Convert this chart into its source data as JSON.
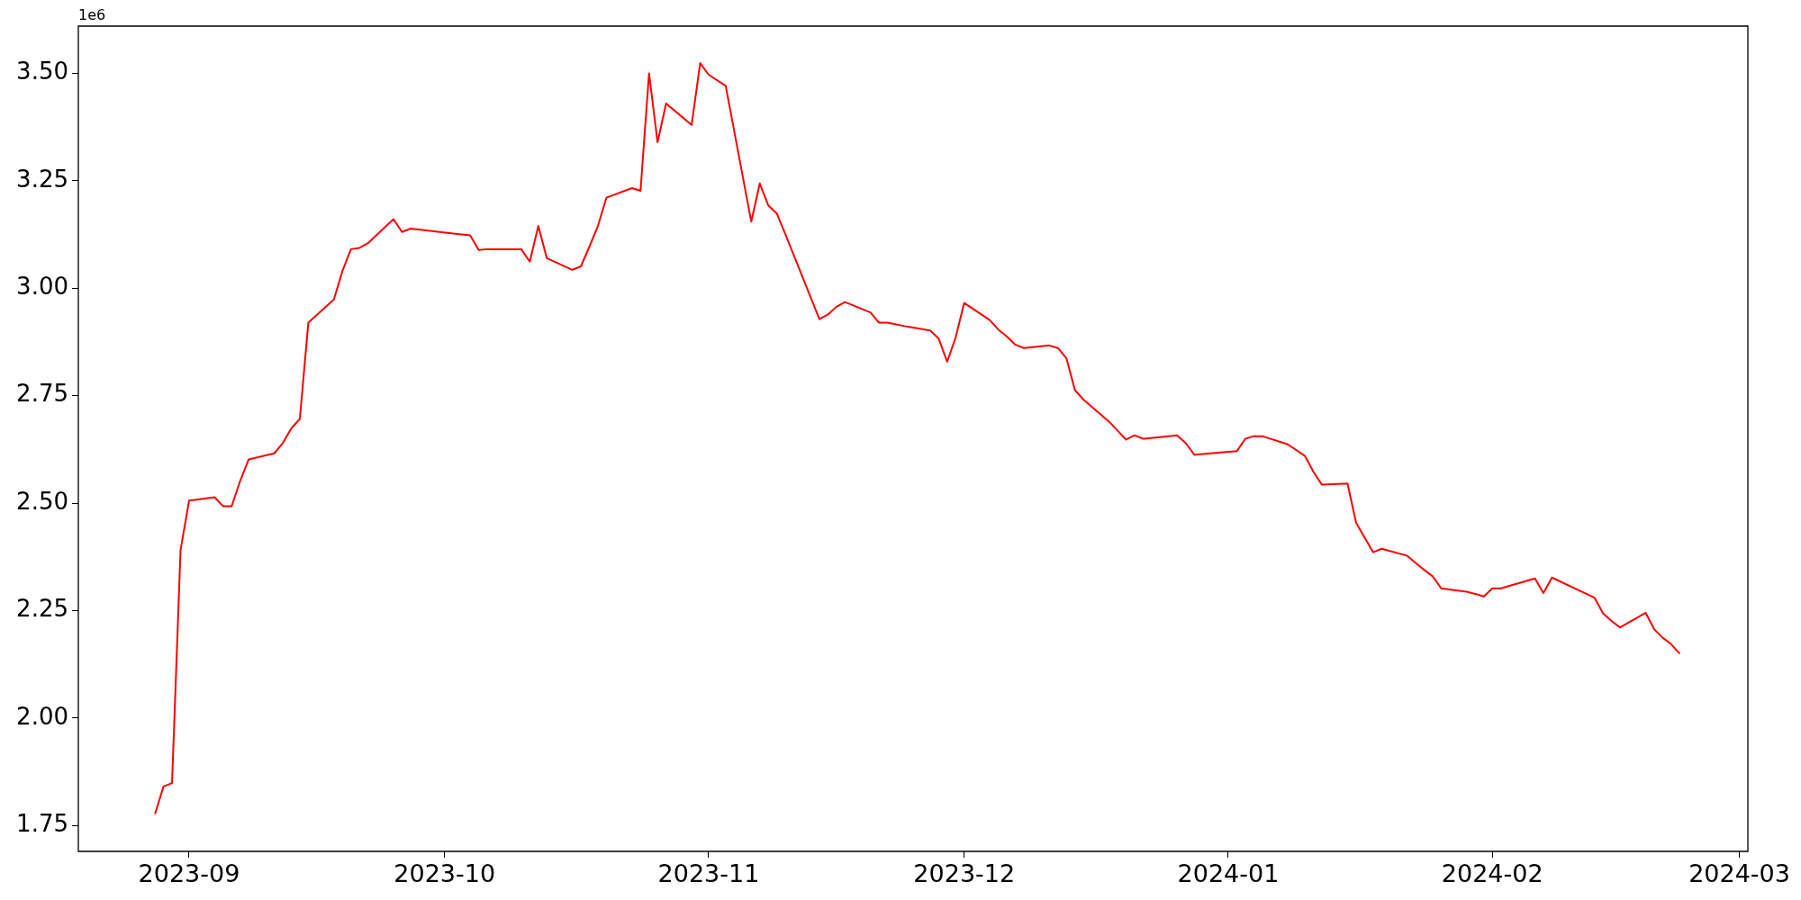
{
  "chart_data": {
    "type": "line",
    "x": [
      "2023-08-28",
      "2023-08-29",
      "2023-08-30",
      "2023-08-31",
      "2023-09-01",
      "2023-09-04",
      "2023-09-05",
      "2023-09-06",
      "2023-09-07",
      "2023-09-08",
      "2023-09-11",
      "2023-09-12",
      "2023-09-13",
      "2023-09-14",
      "2023-09-15",
      "2023-09-18",
      "2023-09-19",
      "2023-09-20",
      "2023-09-21",
      "2023-09-22",
      "2023-09-25",
      "2023-09-26",
      "2023-09-27",
      "2023-10-04",
      "2023-10-05",
      "2023-10-06",
      "2023-10-10",
      "2023-10-11",
      "2023-10-12",
      "2023-10-13",
      "2023-10-16",
      "2023-10-17",
      "2023-10-18",
      "2023-10-19",
      "2023-10-20",
      "2023-10-23",
      "2023-10-24",
      "2023-10-25",
      "2023-10-26",
      "2023-10-27",
      "2023-10-30",
      "2023-10-31",
      "2023-11-01",
      "2023-11-03",
      "2023-11-06",
      "2023-11-07",
      "2023-11-08",
      "2023-11-09",
      "2023-11-10",
      "2023-11-14",
      "2023-11-15",
      "2023-11-16",
      "2023-11-17",
      "2023-11-20",
      "2023-11-21",
      "2023-11-22",
      "2023-11-24",
      "2023-11-27",
      "2023-11-28",
      "2023-11-29",
      "2023-11-30",
      "2023-12-01",
      "2023-12-04",
      "2023-12-05",
      "2023-12-06",
      "2023-12-07",
      "2023-12-08",
      "2023-12-11",
      "2023-12-12",
      "2023-12-13",
      "2023-12-14",
      "2023-12-15",
      "2023-12-18",
      "2023-12-19",
      "2023-12-20",
      "2023-12-21",
      "2023-12-22",
      "2023-12-26",
      "2023-12-27",
      "2023-12-28",
      "2024-01-02",
      "2024-01-03",
      "2024-01-04",
      "2024-01-05",
      "2024-01-08",
      "2024-01-10",
      "2024-01-11",
      "2024-01-12",
      "2024-01-15",
      "2024-01-16",
      "2024-01-18",
      "2024-01-19",
      "2024-01-22",
      "2024-01-23",
      "2024-01-24",
      "2024-01-25",
      "2024-01-26",
      "2024-01-29",
      "2024-01-30",
      "2024-01-31",
      "2024-02-01",
      "2024-02-02",
      "2024-02-06",
      "2024-02-07",
      "2024-02-08",
      "2024-02-13",
      "2024-02-14",
      "2024-02-15",
      "2024-02-16",
      "2024-02-19",
      "2024-02-20",
      "2024-02-21",
      "2024-02-22",
      "2024-02-23"
    ],
    "series": [
      {
        "color": "#ff0000",
        "values": [
          1.777,
          1.841,
          1.849,
          2.391,
          2.506,
          2.514,
          2.493,
          2.493,
          2.552,
          2.602,
          2.616,
          2.64,
          2.674,
          2.696,
          2.92,
          2.974,
          3.04,
          3.091,
          3.094,
          3.105,
          3.161,
          3.131,
          3.139,
          3.123,
          3.089,
          3.091,
          3.091,
          3.062,
          3.145,
          3.07,
          3.043,
          3.051,
          3.097,
          3.145,
          3.211,
          3.233,
          3.227,
          3.5,
          3.34,
          3.43,
          3.38,
          3.524,
          3.497,
          3.471,
          3.155,
          3.244,
          3.193,
          3.174,
          3.126,
          2.928,
          2.939,
          2.957,
          2.968,
          2.944,
          2.92,
          2.92,
          2.912,
          2.902,
          2.883,
          2.829,
          2.886,
          2.966,
          2.926,
          2.904,
          2.888,
          2.869,
          2.861,
          2.867,
          2.861,
          2.837,
          2.763,
          2.741,
          2.69,
          2.669,
          2.648,
          2.658,
          2.65,
          2.658,
          2.64,
          2.613,
          2.621,
          2.65,
          2.656,
          2.656,
          2.637,
          2.61,
          2.573,
          2.543,
          2.546,
          2.455,
          2.386,
          2.394,
          2.378,
          2.361,
          2.345,
          2.33,
          2.302,
          2.294,
          2.289,
          2.283,
          2.302,
          2.302,
          2.325,
          2.291,
          2.327,
          2.28,
          2.244,
          2.226,
          2.211,
          2.245,
          2.207,
          2.187,
          2.172,
          2.15
        ]
      }
    ],
    "xlim": [
      "2023-08-19",
      "2024-03-02"
    ],
    "xticks": [
      {
        "value": "2023-09-01",
        "label": "2023-09"
      },
      {
        "value": "2023-10-01",
        "label": "2023-10"
      },
      {
        "value": "2023-11-01",
        "label": "2023-11"
      },
      {
        "value": "2023-12-01",
        "label": "2023-12"
      },
      {
        "value": "2024-01-01",
        "label": "2024-01"
      },
      {
        "value": "2024-02-01",
        "label": "2024-02"
      },
      {
        "value": "2024-03-01",
        "label": "2024-03"
      }
    ],
    "ylim": [
      1.69,
      3.61
    ],
    "yticks": [
      1.75,
      {
        "value": 2,
        "label": "2.00"
      },
      2.25,
      {
        "value": 2.5,
        "label": "2.50"
      },
      2.75,
      {
        "value": 3,
        "label": "3.00"
      },
      3.25,
      {
        "value": 3.5,
        "label": "3.50"
      }
    ],
    "annotations": [
      "1e6"
    ],
    "marker": "none",
    "line_style": "solid"
  }
}
